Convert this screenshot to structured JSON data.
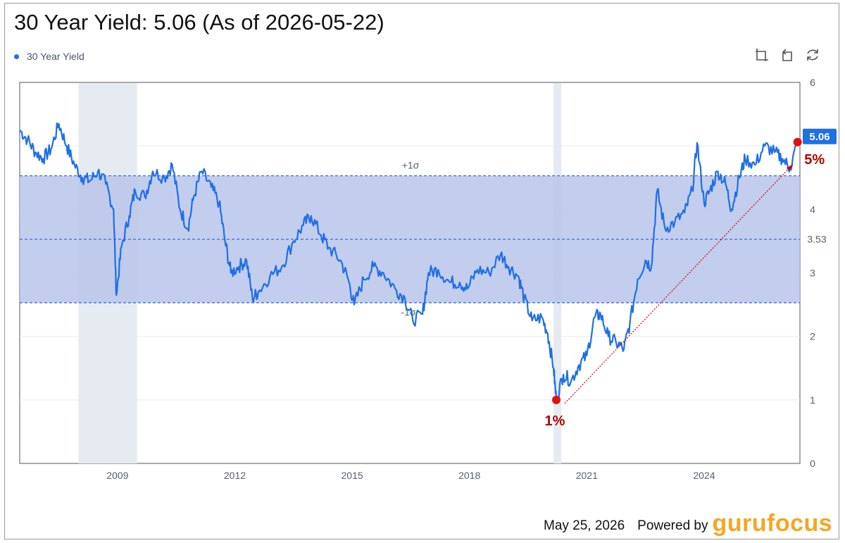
{
  "title": "30 Year Yield: 5.06 (As of 2026-05-22)",
  "legend": {
    "label": "30 Year Yield",
    "color": "#1f6fe5"
  },
  "toolbar": [
    {
      "name": "zoom-area-icon"
    },
    {
      "name": "zoom-reset-icon"
    },
    {
      "name": "refresh-icon"
    }
  ],
  "footer": {
    "date": "May 25, 2026",
    "powered_by": "Powered by",
    "brand_part1": "guru",
    "brand_part2": "focus"
  },
  "chart_data": {
    "type": "line",
    "series": [
      {
        "name": "30 Year Yield",
        "color": "#1f6fe5",
        "points": [
          [
            2006.5,
            5.25
          ],
          [
            2006.7,
            5.1
          ],
          [
            2006.9,
            4.9
          ],
          [
            2007.1,
            4.8
          ],
          [
            2007.3,
            4.95
          ],
          [
            2007.5,
            5.35
          ],
          [
            2007.7,
            5.0
          ],
          [
            2007.9,
            4.7
          ],
          [
            2008.1,
            4.5
          ],
          [
            2008.3,
            4.45
          ],
          [
            2008.5,
            4.6
          ],
          [
            2008.7,
            4.4
          ],
          [
            2008.9,
            4.0
          ],
          [
            2008.97,
            2.65
          ],
          [
            2009.1,
            3.4
          ],
          [
            2009.3,
            3.9
          ],
          [
            2009.45,
            4.3
          ],
          [
            2009.7,
            4.2
          ],
          [
            2009.9,
            4.6
          ],
          [
            2010.2,
            4.5
          ],
          [
            2010.4,
            4.7
          ],
          [
            2010.6,
            4.0
          ],
          [
            2010.8,
            3.7
          ],
          [
            2010.95,
            4.2
          ],
          [
            2011.15,
            4.6
          ],
          [
            2011.4,
            4.35
          ],
          [
            2011.6,
            4.1
          ],
          [
            2011.75,
            3.5
          ],
          [
            2011.9,
            3.0
          ],
          [
            2012.1,
            3.1
          ],
          [
            2012.3,
            3.2
          ],
          [
            2012.45,
            2.6
          ],
          [
            2012.6,
            2.7
          ],
          [
            2012.9,
            2.95
          ],
          [
            2013.2,
            3.1
          ],
          [
            2013.5,
            3.5
          ],
          [
            2013.75,
            3.75
          ],
          [
            2013.95,
            3.9
          ],
          [
            2014.2,
            3.6
          ],
          [
            2014.4,
            3.4
          ],
          [
            2014.7,
            3.2
          ],
          [
            2014.9,
            2.9
          ],
          [
            2015.05,
            2.5
          ],
          [
            2015.3,
            2.9
          ],
          [
            2015.55,
            3.1
          ],
          [
            2015.8,
            3.0
          ],
          [
            2016.1,
            2.75
          ],
          [
            2016.35,
            2.6
          ],
          [
            2016.55,
            2.25
          ],
          [
            2016.8,
            2.35
          ],
          [
            2016.95,
            3.0
          ],
          [
            2017.2,
            3.05
          ],
          [
            2017.5,
            2.85
          ],
          [
            2017.75,
            2.85
          ],
          [
            2017.95,
            2.75
          ],
          [
            2018.2,
            3.05
          ],
          [
            2018.5,
            3.0
          ],
          [
            2018.8,
            3.3
          ],
          [
            2019.0,
            3.1
          ],
          [
            2019.25,
            2.95
          ],
          [
            2019.4,
            2.6
          ],
          [
            2019.6,
            2.25
          ],
          [
            2019.85,
            2.3
          ],
          [
            2020.0,
            2.05
          ],
          [
            2020.15,
            1.5
          ],
          [
            2020.22,
            1.0
          ],
          [
            2020.4,
            1.4
          ],
          [
            2020.6,
            1.3
          ],
          [
            2020.8,
            1.55
          ],
          [
            2021.0,
            1.7
          ],
          [
            2021.2,
            2.3
          ],
          [
            2021.35,
            2.35
          ],
          [
            2021.55,
            2.0
          ],
          [
            2021.75,
            1.9
          ],
          [
            2021.95,
            1.8
          ],
          [
            2022.1,
            2.2
          ],
          [
            2022.3,
            2.9
          ],
          [
            2022.5,
            3.2
          ],
          [
            2022.65,
            3.1
          ],
          [
            2022.8,
            4.3
          ],
          [
            2023.0,
            3.7
          ],
          [
            2023.25,
            3.8
          ],
          [
            2023.5,
            3.95
          ],
          [
            2023.7,
            4.3
          ],
          [
            2023.82,
            5.05
          ],
          [
            2024.0,
            4.1
          ],
          [
            2024.15,
            4.3
          ],
          [
            2024.35,
            4.6
          ],
          [
            2024.55,
            4.4
          ],
          [
            2024.7,
            4.0
          ],
          [
            2024.9,
            4.5
          ],
          [
            2025.05,
            4.8
          ],
          [
            2025.3,
            4.7
          ],
          [
            2025.55,
            5.0
          ],
          [
            2025.8,
            4.9
          ],
          [
            2026.0,
            4.8
          ],
          [
            2026.2,
            4.65
          ],
          [
            2026.39,
            5.06
          ]
        ]
      }
    ],
    "xlim": [
      2006.5,
      2026.45
    ],
    "ylim": [
      0,
      6
    ],
    "x_ticks": [
      {
        "value": 2009,
        "label": "2009"
      },
      {
        "value": 2012,
        "label": "2012"
      },
      {
        "value": 2015,
        "label": "2015"
      },
      {
        "value": 2018,
        "label": "2018"
      },
      {
        "value": 2021,
        "label": "2021"
      },
      {
        "value": 2024,
        "label": "2024"
      }
    ],
    "y_ticks": [
      {
        "value": 0,
        "label": "0"
      },
      {
        "value": 1,
        "label": "1"
      },
      {
        "value": 2,
        "label": "2"
      },
      {
        "value": 3,
        "label": "3"
      },
      {
        "value": 4,
        "label": "4"
      },
      {
        "value": 5,
        "label": ""
      },
      {
        "value": 6,
        "label": "6"
      }
    ],
    "mean": {
      "value": 3.53,
      "label": "3.53"
    },
    "plus_sigma": {
      "value": 4.53,
      "label": "+1σ"
    },
    "minus_sigma": {
      "value": 2.53,
      "label": "-1σ"
    },
    "recessions": [
      {
        "start": 2008.0,
        "end": 2009.5
      },
      {
        "start": 2020.15,
        "end": 2020.35
      }
    ],
    "current": {
      "value": 5.06,
      "label": "5.06"
    },
    "annotations": [
      {
        "x": 2020.22,
        "y": 1.0,
        "label": "1%"
      },
      {
        "x": 2026.39,
        "y": 5.06,
        "label": "5%"
      }
    ],
    "band_color": "#b8c4ea",
    "recession_color": "#e6ebf1",
    "annotation_color": "#cc0000",
    "grid": true,
    "legend_position": "top-left"
  }
}
